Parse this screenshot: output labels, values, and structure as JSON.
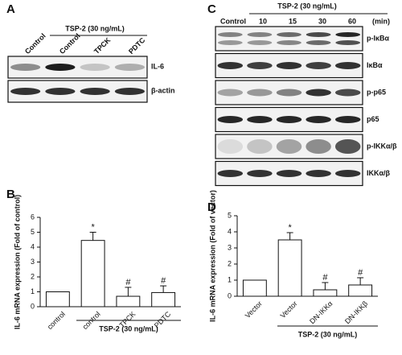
{
  "panel_a": {
    "label": "A",
    "group_label": "TSP-2 (30 ng/mL)",
    "lanes": [
      "Control",
      "Control",
      "TPCK",
      "PDTC"
    ],
    "rows": [
      "IL-6",
      "β-actin"
    ]
  },
  "panel_c": {
    "label": "C",
    "group_label": "TSP-2 (30 ng/mL)",
    "lanes": [
      "Control",
      "10",
      "15",
      "30",
      "60"
    ],
    "unit": "(min)",
    "rows": [
      "p-IκBα",
      "IκBα",
      "p-p65",
      "p65",
      "p-IKKα/β",
      "IKKα/β"
    ]
  },
  "chart_data": [
    {
      "type": "bar",
      "panel": "B",
      "ylabel": "IL-6 mRNA expression  (Fold of control)",
      "categories": [
        "control",
        "control",
        "TPCK",
        "PDTC"
      ],
      "values": [
        1,
        4.45,
        0.7,
        0.95
      ],
      "errors": [
        0,
        0.55,
        0.6,
        0.45
      ],
      "annotations": [
        null,
        "*",
        "#",
        "#"
      ],
      "group_label": "TSP-2 (30 ng/mL)",
      "ylim": [
        0,
        6
      ],
      "yticks": [
        0,
        1,
        2,
        3,
        4,
        5,
        6
      ],
      "color": "#ffffff"
    },
    {
      "type": "bar",
      "panel": "D",
      "ylabel": "IL-6 mRNA expression  (Fold of vector)",
      "categories": [
        "Vector",
        "Vector",
        "DN-IKKα",
        "DN-IKKβ"
      ],
      "values": [
        1,
        3.5,
        0.4,
        0.7
      ],
      "errors": [
        0,
        0.45,
        0.45,
        0.45
      ],
      "annotations": [
        null,
        "*",
        "#",
        "#"
      ],
      "group_label": "TSP-2 (30 ng/mL)",
      "ylim": [
        0,
        5
      ],
      "yticks": [
        0,
        1,
        2,
        3,
        4,
        5
      ],
      "color": "#ffffff"
    }
  ]
}
